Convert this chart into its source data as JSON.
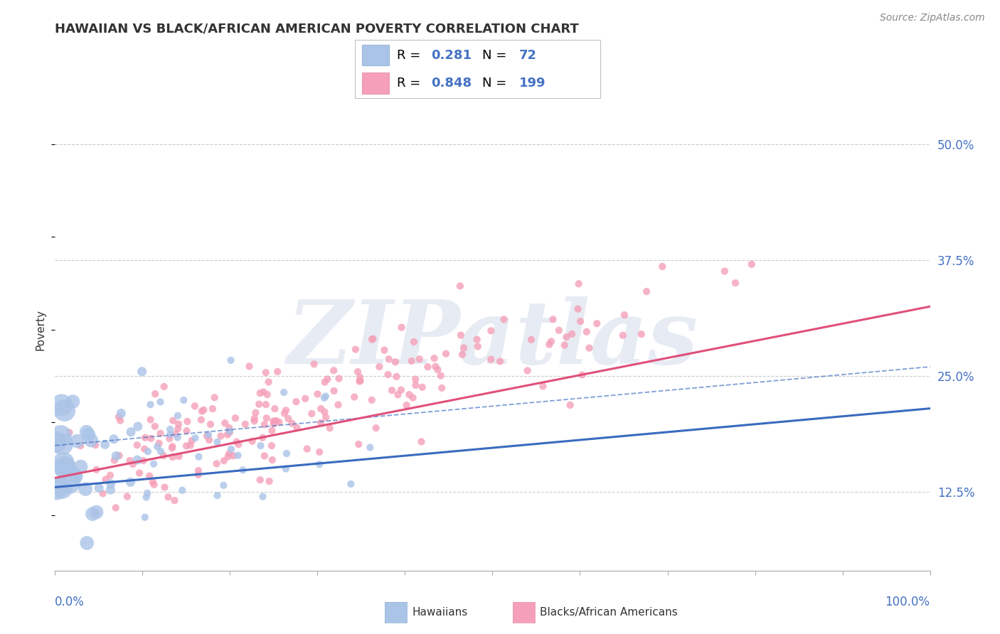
{
  "title": "HAWAIIAN VS BLACK/AFRICAN AMERICAN POVERTY CORRELATION CHART",
  "source_text": "Source: ZipAtlas.com",
  "ylabel": "Poverty",
  "xlim": [
    0.0,
    1.0
  ],
  "ylim": [
    0.04,
    0.56
  ],
  "yticks": [
    0.125,
    0.25,
    0.375,
    0.5
  ],
  "ytick_labels": [
    "12.5%",
    "25.0%",
    "37.5%",
    "50.0%"
  ],
  "xtick_labels_left": "0.0%",
  "xtick_labels_right": "100.0%",
  "hawaiian_R": 0.281,
  "hawaiian_N": 72,
  "black_R": 0.848,
  "black_N": 199,
  "hawaiian_color": "#aac4e8",
  "black_color": "#f5a0b8",
  "hawaiian_line_color": "#3a6bbf",
  "black_line_color": "#e0507a",
  "legend_label_hawaiian": "Hawaiians",
  "legend_label_black": "Blacks/African Americans",
  "watermark_text": "ZIPatlas",
  "background_color": "#ffffff",
  "grid_color": "#cccccc",
  "title_color": "#333333",
  "blue_text_color": "#4472c4",
  "pink_text_color": "#e05070",
  "hawaiian_seed": 42,
  "black_seed": 55,
  "legend_R_color": "#000000",
  "legend_N_color": "#4472c4"
}
